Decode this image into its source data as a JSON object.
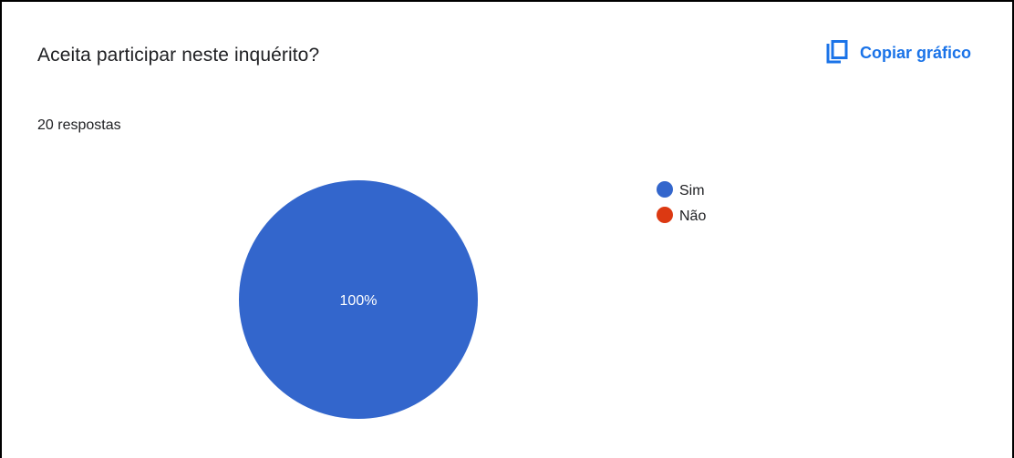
{
  "card": {
    "title": "Aceita participar neste inquérito?",
    "copy_label": "Copiar gráfico",
    "copy_icon": "copy-icon",
    "response_count": "20 respostas"
  },
  "colors": {
    "accent": "#1a73e8",
    "sim": "#3366cc",
    "nao": "#dc3912"
  },
  "chart_data": {
    "type": "pie",
    "categories": [
      "Sim",
      "Não"
    ],
    "values": [
      100,
      0
    ],
    "labels": [
      "100%",
      ""
    ],
    "legend": "right"
  }
}
